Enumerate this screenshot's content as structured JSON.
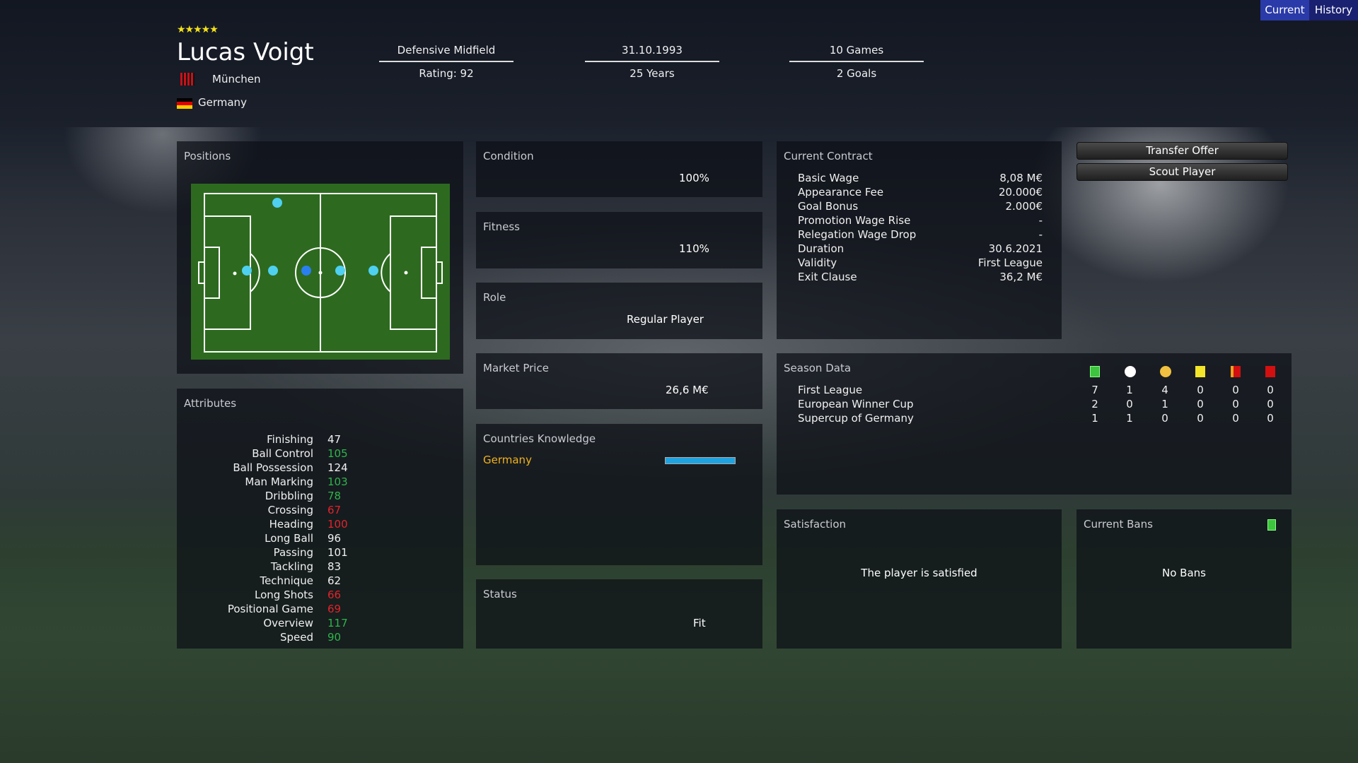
{
  "header": {
    "stars": "★★★★★",
    "star_rating": 5,
    "name": "Lucas Voigt",
    "club": "München",
    "nationality": "Germany",
    "columns": [
      {
        "top": "Defensive Midfield",
        "bottom": "Rating: 92"
      },
      {
        "top": "31.10.1993",
        "bottom": "25 Years"
      },
      {
        "top": "10 Games",
        "bottom": "2 Goals"
      }
    ]
  },
  "tabs": [
    {
      "label": "Current",
      "active": true
    },
    {
      "label": "History",
      "active": false
    }
  ],
  "buttons": {
    "transfer_offer": "Transfer Offer",
    "scout_player": "Scout Player"
  },
  "positions": {
    "title": "Positions"
  },
  "attributes": {
    "title": "Attributes",
    "items": [
      {
        "label": "Finishing",
        "value": "47",
        "color": "white"
      },
      {
        "label": "Ball Control",
        "value": "105",
        "color": "green"
      },
      {
        "label": "Ball Possession",
        "value": "124",
        "color": "white"
      },
      {
        "label": "Man Marking",
        "value": "103",
        "color": "green"
      },
      {
        "label": "Dribbling",
        "value": "78",
        "color": "green"
      },
      {
        "label": "Crossing",
        "value": "67",
        "color": "red"
      },
      {
        "label": "Heading",
        "value": "100",
        "color": "red"
      },
      {
        "label": "Long Ball",
        "value": "96",
        "color": "white"
      },
      {
        "label": "Passing",
        "value": "101",
        "color": "white"
      },
      {
        "label": "Tackling",
        "value": "83",
        "color": "white"
      },
      {
        "label": "Technique",
        "value": "62",
        "color": "white"
      },
      {
        "label": "Long Shots",
        "value": "66",
        "color": "red"
      },
      {
        "label": "Positional Game",
        "value": "69",
        "color": "red"
      },
      {
        "label": "Overview",
        "value": "117",
        "color": "green"
      },
      {
        "label": "Speed",
        "value": "90",
        "color": "green"
      }
    ]
  },
  "condition": {
    "title": "Condition",
    "value": "100%"
  },
  "fitness": {
    "title": "Fitness",
    "value": "110%"
  },
  "role": {
    "title": "Role",
    "value": "Regular Player"
  },
  "market_price": {
    "title": "Market Price",
    "value": "26,6 M€"
  },
  "countries_knowledge": {
    "title": "Countries Knowledge",
    "items": [
      {
        "country": "Germany",
        "level": 1.0
      }
    ]
  },
  "status": {
    "title": "Status",
    "value": "Fit"
  },
  "contract": {
    "title": "Current Contract",
    "rows": [
      {
        "label": "Basic Wage",
        "value": "8,08 M€"
      },
      {
        "label": "Appearance Fee",
        "value": "20.000€"
      },
      {
        "label": "Goal Bonus",
        "value": "2.000€"
      },
      {
        "label": "Promotion Wage Rise",
        "value": "-"
      },
      {
        "label": "Relegation Wage Drop",
        "value": "-"
      },
      {
        "label": "Duration",
        "value": "30.6.2021"
      },
      {
        "label": "Validity",
        "value": "First League"
      },
      {
        "label": "Exit Clause",
        "value": "36,2 M€"
      }
    ]
  },
  "season_data": {
    "title": "Season Data",
    "columns": [
      "games-pitch-icon",
      "goals-ball-icon",
      "assists-ball-icon",
      "yellow-card-icon",
      "yellow-red-card-icon",
      "red-card-icon"
    ],
    "rows": [
      {
        "competition": "First League",
        "values": [
          "7",
          "1",
          "4",
          "0",
          "0",
          "0"
        ]
      },
      {
        "competition": "European Winner Cup",
        "values": [
          "2",
          "0",
          "1",
          "0",
          "0",
          "0"
        ]
      },
      {
        "competition": "Supercup of Germany",
        "values": [
          "1",
          "1",
          "0",
          "0",
          "0",
          "0"
        ]
      }
    ]
  },
  "satisfaction": {
    "title": "Satisfaction",
    "value": "The player is satisfied"
  },
  "bans": {
    "title": "Current Bans",
    "value": "No Bans"
  },
  "colors": {
    "accent_tab": "#2a3aa8",
    "green": "#2fb54a",
    "red": "#e3232b",
    "country": "#f2b21c",
    "bar": "#1fa3e0"
  }
}
